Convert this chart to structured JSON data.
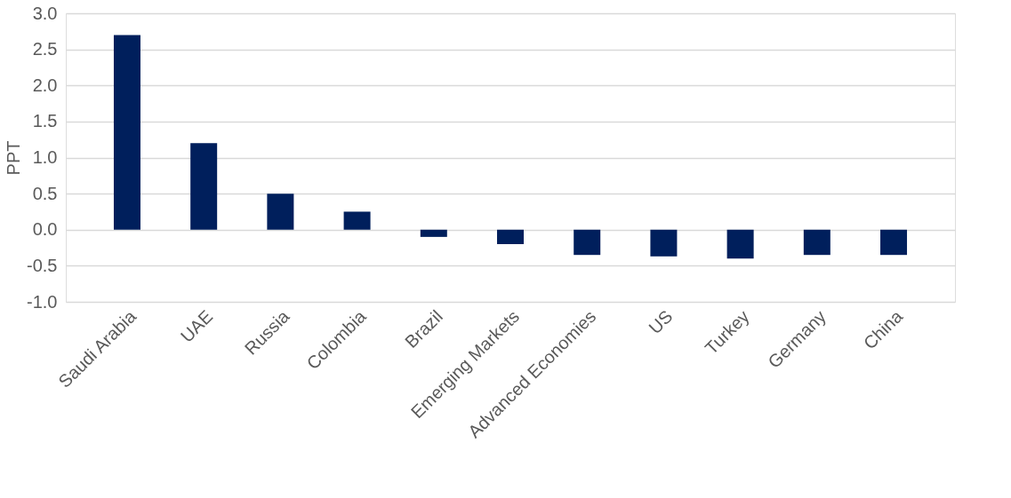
{
  "chart_data": {
    "type": "bar",
    "ylabel": "PPT",
    "categories": [
      "Saudi Arabia",
      "UAE",
      "Russia",
      "Colombia",
      "Brazil",
      "Emerging Markets",
      "Advanced Economies",
      "US",
      "Turkey",
      "Germany",
      "China"
    ],
    "series": [
      {
        "color": "#001f5c",
        "values": [
          2.7,
          1.2,
          0.5,
          0.25,
          -0.1,
          -0.2,
          -0.35,
          -0.37,
          -0.4,
          -0.35,
          -0.35
        ]
      }
    ],
    "ylim": [
      -1.0,
      3.0
    ],
    "yticks": [
      {
        "value": -1.0,
        "label": "-1.0"
      },
      {
        "value": -0.5,
        "label": "-0.5"
      },
      {
        "value": 0.0,
        "label": "0.0"
      },
      {
        "value": 0.5,
        "label": "0.5"
      },
      {
        "value": 1.0,
        "label": "1.0"
      },
      {
        "value": 1.5,
        "label": "1.5"
      },
      {
        "value": 2.0,
        "label": "2.0"
      },
      {
        "value": 2.5,
        "label": "2.5"
      },
      {
        "value": 3.0,
        "label": "3.0"
      }
    ],
    "grid": "y"
  }
}
